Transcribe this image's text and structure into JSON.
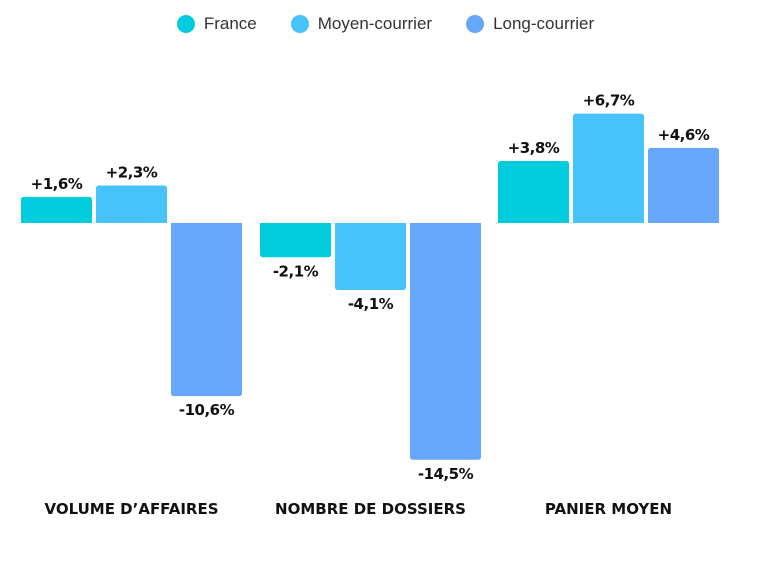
{
  "chart_data": {
    "type": "bar",
    "title": "",
    "xlabel": "",
    "ylabel": "",
    "categories": [
      "VOLUME D’AFFAIRES",
      "NOMBRE DE DOSSIERS",
      "PANIER MOYEN"
    ],
    "series": [
      {
        "name": "France",
        "color": "#00CCDD",
        "values": [
          1.6,
          -2.1,
          3.8
        ],
        "labels": [
          "+1,6%",
          "-2,1%",
          "+3,8%"
        ]
      },
      {
        "name": "Moyen-courrier",
        "color": "#47C3FC",
        "values": [
          2.3,
          -4.1,
          6.7
        ],
        "labels": [
          "+2,3%",
          "-4,1%",
          "+6,7%"
        ]
      },
      {
        "name": "Long-courrier",
        "color": "#66A6FB",
        "values": [
          -10.6,
          -14.5,
          4.6
        ],
        "labels": [
          "-10,6%",
          "-14,5%",
          "+4,6%"
        ]
      }
    ],
    "ylim": [
      -14.5,
      6.7
    ],
    "grid": false,
    "legend_position": "top-center"
  }
}
